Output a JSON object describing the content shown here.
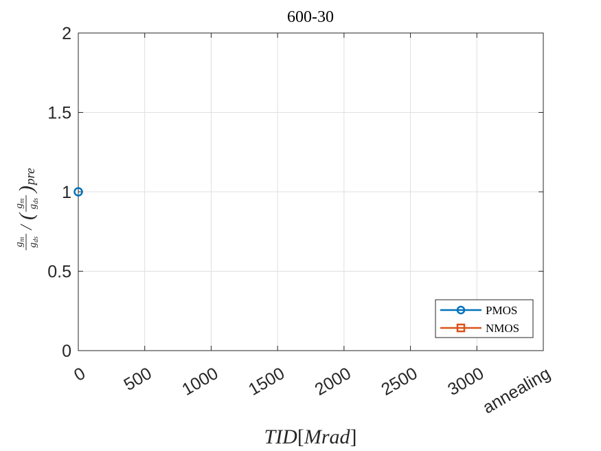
{
  "chart_data": {
    "type": "line",
    "title": "600-30",
    "xlabel": "TID[Mrad]",
    "ylabel": "g_m/g_ds / (g_m/g_ds)_pre",
    "x_ticks": [
      0,
      500,
      1000,
      1500,
      2000,
      2500,
      3000,
      "annealing"
    ],
    "xlim": [
      0,
      3500
    ],
    "ylim": [
      0,
      2
    ],
    "y_ticks": [
      "0",
      "0.5",
      "1",
      "1.5",
      "2"
    ],
    "grid": true,
    "legend_position": "bottom-right",
    "series": [
      {
        "name": "PMOS",
        "color": "#0072BD",
        "marker": "circle",
        "x": [
          0
        ],
        "y": [
          1
        ]
      },
      {
        "name": "NMOS",
        "color": "#D95319",
        "marker": "square",
        "x": [],
        "y": []
      }
    ]
  }
}
